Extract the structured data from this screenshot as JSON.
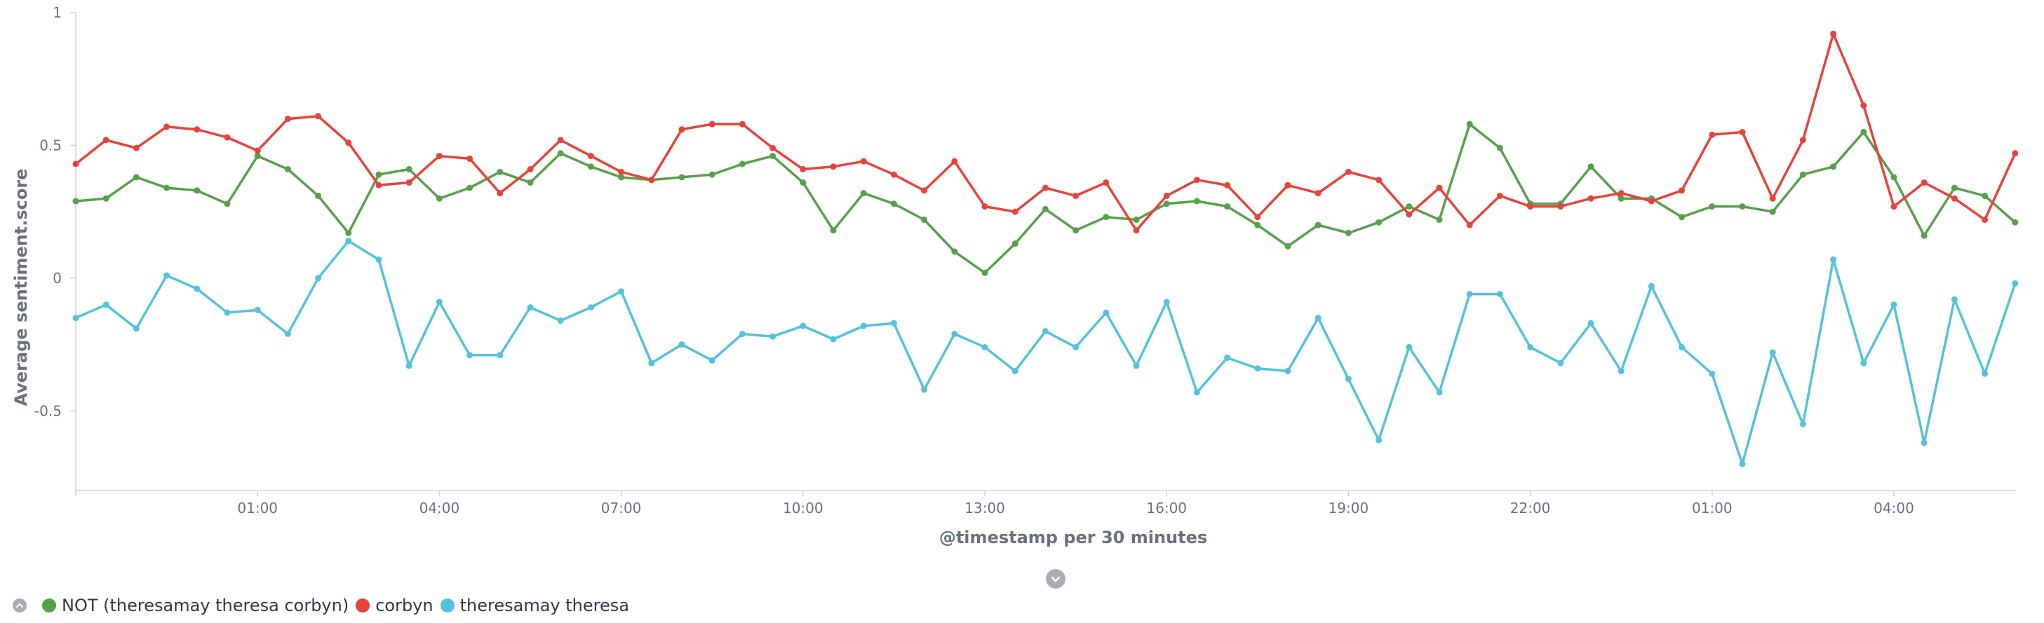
{
  "chart_data": {
    "type": "line",
    "xlabel": "@timestamp per 30 minutes",
    "ylabel": "Average sentiment.score",
    "ylim": [
      -0.8,
      1
    ],
    "yticks": [
      1,
      0.5,
      0,
      -0.5
    ],
    "ytick_labels": [
      "1",
      "0.5",
      "0",
      "-0.5"
    ],
    "x_unit": "30-minute intervals",
    "xlim": [
      0,
      65
    ],
    "xticks": [
      6,
      12,
      18,
      24,
      30,
      36,
      42,
      48,
      54,
      60
    ],
    "xtick_labels": [
      "01:00",
      "04:00",
      "07:00",
      "10:00",
      "13:00",
      "16:00",
      "19:00",
      "22:00",
      "01:00",
      "04:00"
    ],
    "grid": false,
    "legend_position": "bottom-left",
    "series": [
      {
        "name": "NOT (theresamay theresa corbyn)",
        "color": "#57a04b",
        "values": [
          0.29,
          0.3,
          0.38,
          0.34,
          0.33,
          0.28,
          0.46,
          0.41,
          0.31,
          0.17,
          0.39,
          0.41,
          0.3,
          0.34,
          0.4,
          0.36,
          0.47,
          0.42,
          0.38,
          0.37,
          0.38,
          0.39,
          0.43,
          0.46,
          0.36,
          0.18,
          0.32,
          0.28,
          0.22,
          0.1,
          0.02,
          0.13,
          0.26,
          0.18,
          0.23,
          0.22,
          0.28,
          0.29,
          0.27,
          0.2,
          0.12,
          0.2,
          0.17,
          0.21,
          0.27,
          0.22,
          0.58,
          0.49,
          0.28,
          0.28,
          0.42,
          0.3,
          0.3,
          0.23,
          0.27,
          0.27,
          0.25,
          0.39,
          0.42,
          0.55,
          0.38,
          0.16,
          0.34,
          0.31,
          0.21
        ]
      },
      {
        "name": "corbyn",
        "color": "#e7433b",
        "values": [
          0.43,
          0.52,
          0.49,
          0.57,
          0.56,
          0.53,
          0.48,
          0.6,
          0.61,
          0.51,
          0.35,
          0.36,
          0.46,
          0.45,
          0.32,
          0.41,
          0.52,
          0.46,
          0.4,
          0.37,
          0.56,
          0.58,
          0.58,
          0.49,
          0.41,
          0.42,
          0.44,
          0.39,
          0.33,
          0.44,
          0.27,
          0.25,
          0.34,
          0.31,
          0.36,
          0.18,
          0.31,
          0.37,
          0.35,
          0.23,
          0.35,
          0.32,
          0.4,
          0.37,
          0.24,
          0.34,
          0.2,
          0.31,
          0.27,
          0.27,
          0.3,
          0.32,
          0.29,
          0.33,
          0.54,
          0.55,
          0.3,
          0.52,
          0.92,
          0.65,
          0.27,
          0.36,
          0.3,
          0.22,
          0.47
        ]
      },
      {
        "name": "theresamay theresa",
        "color": "#54c2dd",
        "values": [
          -0.15,
          -0.1,
          -0.19,
          0.01,
          -0.04,
          -0.13,
          -0.12,
          -0.21,
          0.0,
          0.14,
          0.07,
          -0.33,
          -0.09,
          -0.29,
          -0.29,
          -0.11,
          -0.16,
          -0.11,
          -0.05,
          -0.32,
          -0.25,
          -0.31,
          -0.21,
          -0.22,
          -0.18,
          -0.23,
          -0.18,
          -0.17,
          -0.42,
          -0.21,
          -0.26,
          -0.35,
          -0.2,
          -0.26,
          -0.13,
          -0.33,
          -0.09,
          -0.43,
          -0.3,
          -0.34,
          -0.35,
          -0.15,
          -0.38,
          -0.61,
          -0.26,
          -0.43,
          -0.06,
          -0.06,
          -0.26,
          -0.32,
          -0.17,
          -0.35,
          -0.03,
          -0.26,
          -0.36,
          -0.7,
          -0.28,
          -0.55,
          0.07,
          -0.32,
          -0.1,
          -0.62,
          -0.08,
          -0.36,
          -0.02
        ]
      }
    ]
  },
  "icons": {
    "legend_toggle": "chevron-up-icon",
    "expand": "chevron-down-icon"
  }
}
